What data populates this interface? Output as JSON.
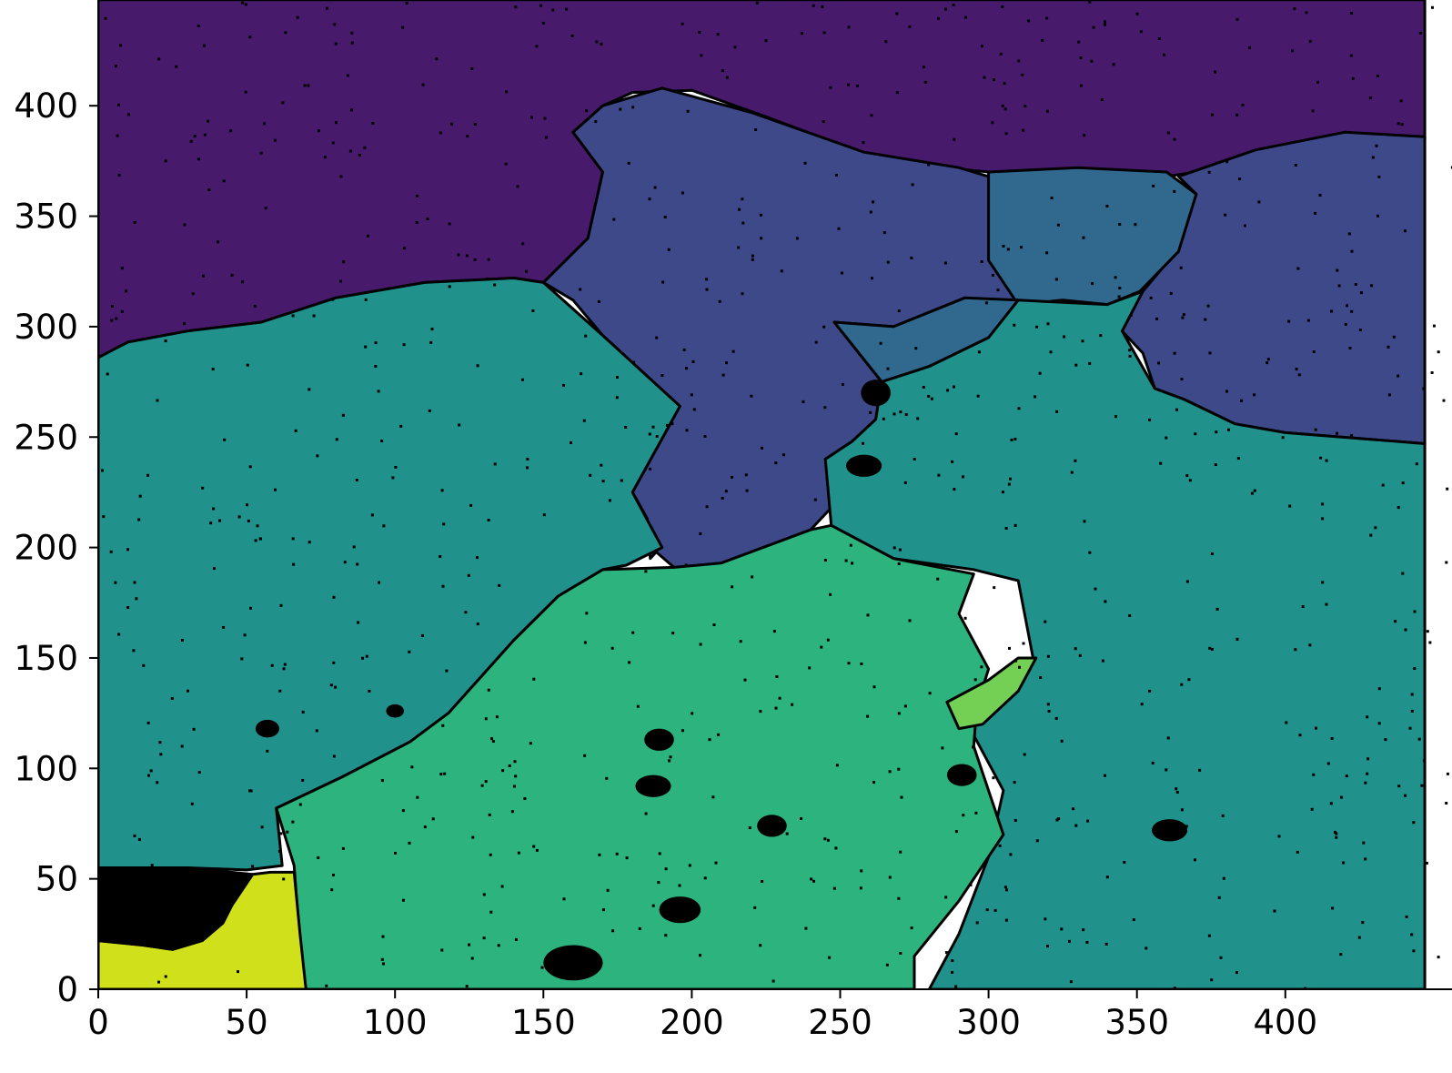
{
  "chart_data": {
    "type": "heatmap",
    "title": "",
    "xlabel": "",
    "ylabel": "",
    "xlim": [
      0,
      447
    ],
    "ylim": [
      0,
      448
    ],
    "origin": "lower",
    "colormap": "viridis",
    "x_ticks": [
      0,
      50,
      100,
      150,
      200,
      250,
      300,
      350,
      400
    ],
    "y_ticks": [
      0,
      50,
      100,
      150,
      200,
      250,
      300,
      350,
      400
    ],
    "x_tick_labels": [
      "0",
      "50",
      "100",
      "150",
      "200",
      "250",
      "300",
      "350",
      "400"
    ],
    "y_tick_labels": [
      "0",
      "50",
      "100",
      "150",
      "200",
      "250",
      "300",
      "350",
      "400"
    ],
    "boundary_color": "#000000",
    "regions": [
      {
        "id": "grain-top-purple",
        "color": "#481a6c",
        "polygon": [
          [
            0,
            448
          ],
          [
            447,
            448
          ],
          [
            447,
            385
          ],
          [
            420,
            388
          ],
          [
            380,
            372
          ],
          [
            360,
            368
          ],
          [
            330,
            368
          ],
          [
            300,
            370
          ],
          [
            270,
            374
          ],
          [
            255,
            380
          ],
          [
            225,
            395
          ],
          [
            200,
            407
          ],
          [
            180,
            406
          ],
          [
            170,
            400
          ],
          [
            160,
            388
          ],
          [
            170,
            370
          ],
          [
            165,
            340
          ],
          [
            150,
            320
          ],
          [
            140,
            322
          ],
          [
            110,
            320
          ],
          [
            80,
            313
          ],
          [
            55,
            302
          ],
          [
            30,
            298
          ],
          [
            10,
            293
          ],
          [
            0,
            286
          ]
        ]
      },
      {
        "id": "grain-mid-indigo",
        "color": "#3e4989",
        "polygon": [
          [
            170,
            400
          ],
          [
            190,
            408
          ],
          [
            220,
            397
          ],
          [
            258,
            379
          ],
          [
            290,
            372
          ],
          [
            300,
            368
          ],
          [
            302,
            330
          ],
          [
            310,
            310
          ],
          [
            292,
            313
          ],
          [
            268,
            300
          ],
          [
            248,
            302
          ],
          [
            264,
            275
          ],
          [
            262,
            258
          ],
          [
            254,
            248
          ],
          [
            245,
            240
          ],
          [
            247,
            218
          ],
          [
            240,
            208
          ],
          [
            210,
            193
          ],
          [
            208,
            190
          ],
          [
            194,
            191
          ],
          [
            188,
            198
          ],
          [
            186,
            195
          ],
          [
            185,
            213
          ],
          [
            180,
            225
          ],
          [
            196,
            264
          ],
          [
            170,
            296
          ],
          [
            160,
            312
          ],
          [
            150,
            320
          ],
          [
            165,
            340
          ],
          [
            170,
            370
          ],
          [
            160,
            388
          ]
        ]
      },
      {
        "id": "grain-right-indigo",
        "color": "#3e4989",
        "polygon": [
          [
            364,
            368
          ],
          [
            390,
            380
          ],
          [
            420,
            388
          ],
          [
            447,
            386
          ],
          [
            447,
            247
          ],
          [
            400,
            252
          ],
          [
            383,
            256
          ],
          [
            366,
            267
          ],
          [
            356,
            272
          ],
          [
            352,
            288
          ],
          [
            345,
            298
          ],
          [
            352,
            316
          ],
          [
            362,
            332
          ],
          [
            370,
            360
          ]
        ]
      },
      {
        "id": "grain-small-blue",
        "color": "#31688e",
        "polygon": [
          [
            300,
            370
          ],
          [
            330,
            372
          ],
          [
            360,
            370
          ],
          [
            370,
            360
          ],
          [
            364,
            334
          ],
          [
            351,
            316
          ],
          [
            340,
            310
          ],
          [
            325,
            312
          ],
          [
            310,
            310
          ],
          [
            300,
            330
          ]
        ]
      },
      {
        "id": "grain-wedge-blue",
        "color": "#31688e",
        "polygon": [
          [
            248,
            302
          ],
          [
            268,
            300
          ],
          [
            292,
            313
          ],
          [
            310,
            312
          ],
          [
            300,
            295
          ],
          [
            280,
            282
          ],
          [
            264,
            275
          ]
        ]
      },
      {
        "id": "grain-left-teal",
        "color": "#21918c",
        "polygon": [
          [
            0,
            286
          ],
          [
            10,
            293
          ],
          [
            30,
            298
          ],
          [
            55,
            302
          ],
          [
            80,
            313
          ],
          [
            110,
            320
          ],
          [
            140,
            322
          ],
          [
            150,
            320
          ],
          [
            170,
            296
          ],
          [
            196,
            264
          ],
          [
            180,
            225
          ],
          [
            186,
            210
          ],
          [
            190,
            200
          ],
          [
            178,
            192
          ],
          [
            170,
            190
          ],
          [
            155,
            178
          ],
          [
            140,
            158
          ],
          [
            128,
            140
          ],
          [
            118,
            125
          ],
          [
            105,
            112
          ],
          [
            82,
            96
          ],
          [
            60,
            82
          ],
          [
            62,
            56
          ],
          [
            50,
            54
          ],
          [
            30,
            55
          ],
          [
            0,
            55
          ]
        ]
      },
      {
        "id": "grain-right-teal",
        "color": "#21918c",
        "polygon": [
          [
            264,
            275
          ],
          [
            280,
            282
          ],
          [
            300,
            295
          ],
          [
            310,
            312
          ],
          [
            340,
            310
          ],
          [
            352,
            316
          ],
          [
            345,
            298
          ],
          [
            356,
            272
          ],
          [
            366,
            267
          ],
          [
            383,
            256
          ],
          [
            400,
            252
          ],
          [
            447,
            247
          ],
          [
            447,
            0
          ],
          [
            280,
            0
          ],
          [
            290,
            25
          ],
          [
            300,
            60
          ],
          [
            305,
            90
          ],
          [
            295,
            115
          ],
          [
            290,
            130
          ],
          [
            300,
            135
          ],
          [
            315,
            150
          ],
          [
            310,
            185
          ],
          [
            295,
            190
          ],
          [
            268,
            195
          ],
          [
            247,
            210
          ],
          [
            245,
            240
          ],
          [
            254,
            248
          ],
          [
            262,
            258
          ]
        ]
      },
      {
        "id": "grain-bottom-green",
        "color": "#2db37d",
        "polygon": [
          [
            60,
            82
          ],
          [
            82,
            96
          ],
          [
            105,
            112
          ],
          [
            118,
            125
          ],
          [
            128,
            140
          ],
          [
            140,
            158
          ],
          [
            155,
            178
          ],
          [
            170,
            190
          ],
          [
            194,
            191
          ],
          [
            210,
            193
          ],
          [
            240,
            208
          ],
          [
            247,
            210
          ],
          [
            268,
            195
          ],
          [
            295,
            188
          ],
          [
            290,
            170
          ],
          [
            300,
            145
          ],
          [
            296,
            128
          ],
          [
            295,
            110
          ],
          [
            300,
            90
          ],
          [
            305,
            70
          ],
          [
            290,
            40
          ],
          [
            275,
            15
          ],
          [
            275,
            0
          ],
          [
            70,
            0
          ],
          [
            68,
            20
          ],
          [
            66,
            56
          ]
        ]
      },
      {
        "id": "grain-small-lightgreen",
        "color": "#73d055",
        "polygon": [
          [
            286,
            130
          ],
          [
            300,
            140
          ],
          [
            310,
            150
          ],
          [
            316,
            150
          ],
          [
            310,
            135
          ],
          [
            298,
            120
          ],
          [
            290,
            118
          ]
        ]
      },
      {
        "id": "grain-bottom-left-yellow",
        "color": "#d0e11c",
        "polygon": [
          [
            0,
            22
          ],
          [
            15,
            20
          ],
          [
            25,
            18
          ],
          [
            35,
            22
          ],
          [
            42,
            30
          ],
          [
            45,
            38
          ],
          [
            52,
            52
          ],
          [
            58,
            53
          ],
          [
            66,
            53
          ],
          [
            68,
            25
          ],
          [
            70,
            0
          ],
          [
            0,
            0
          ]
        ]
      },
      {
        "id": "hole-bottom-left",
        "color": "#000000",
        "polygon": [
          [
            0,
            22
          ],
          [
            15,
            20
          ],
          [
            25,
            18
          ],
          [
            35,
            22
          ],
          [
            42,
            30
          ],
          [
            45,
            38
          ],
          [
            52,
            52
          ],
          [
            30,
            55
          ],
          [
            0,
            55
          ]
        ]
      }
    ],
    "holes": [
      {
        "x": 57,
        "y": 118,
        "rx": 4,
        "ry": 4
      },
      {
        "x": 100,
        "y": 126,
        "rx": 3,
        "ry": 3
      },
      {
        "x": 187,
        "y": 92,
        "rx": 6,
        "ry": 5
      },
      {
        "x": 227,
        "y": 74,
        "rx": 5,
        "ry": 5
      },
      {
        "x": 189,
        "y": 113,
        "rx": 5,
        "ry": 5
      },
      {
        "x": 258,
        "y": 237,
        "rx": 6,
        "ry": 5
      },
      {
        "x": 262,
        "y": 270,
        "rx": 5,
        "ry": 6
      },
      {
        "x": 291,
        "y": 97,
        "rx": 5,
        "ry": 5
      },
      {
        "x": 361,
        "y": 72,
        "rx": 6,
        "ry": 5
      },
      {
        "x": 160,
        "y": 12,
        "rx": 10,
        "ry": 8
      },
      {
        "x": 196,
        "y": 36,
        "rx": 7,
        "ry": 6
      }
    ]
  }
}
